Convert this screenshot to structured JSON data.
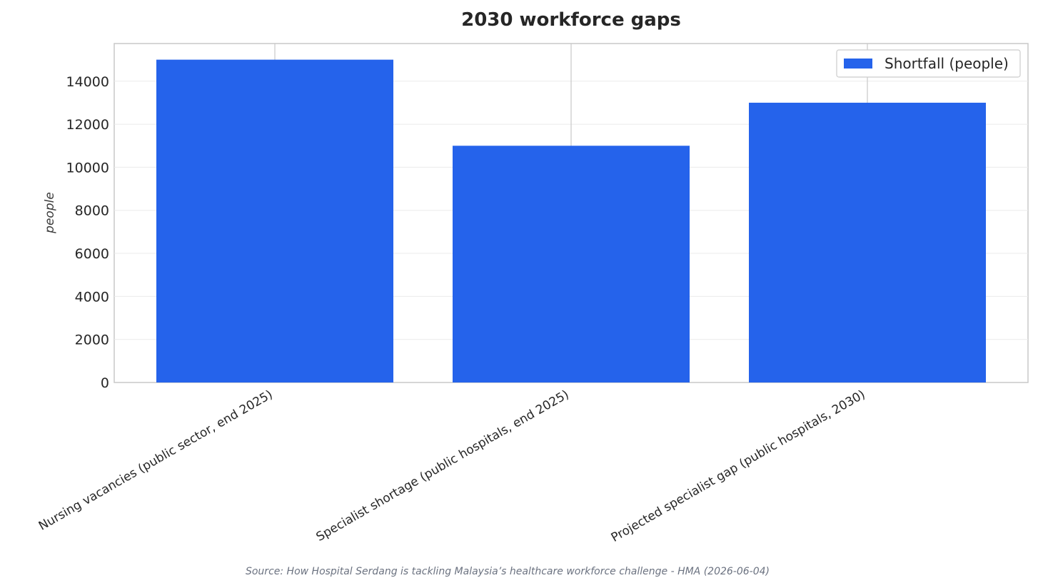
{
  "chart_data": {
    "type": "bar",
    "title": "2030 workforce gaps",
    "ylabel": "people",
    "xlabel": "",
    "categories": [
      "Nursing vacancies (public sector, end 2025)",
      "Specialist shortage (public hospitals, end 2025)",
      "Projected specialist gap (public hospitals, 2030)"
    ],
    "series": [
      {
        "name": "Shortfall (people)",
        "values": [
          15000,
          11000,
          13000
        ],
        "color": "#2563eb"
      }
    ],
    "ylim": [
      0,
      15750
    ],
    "yticks": [
      0,
      2000,
      4000,
      6000,
      8000,
      10000,
      12000,
      14000
    ],
    "grid": true,
    "legend_position": "top-right",
    "source": "Source: How Hospital Serdang is tackling Malaysia’s healthcare workforce challenge - HMA (2026-06-04)"
  }
}
